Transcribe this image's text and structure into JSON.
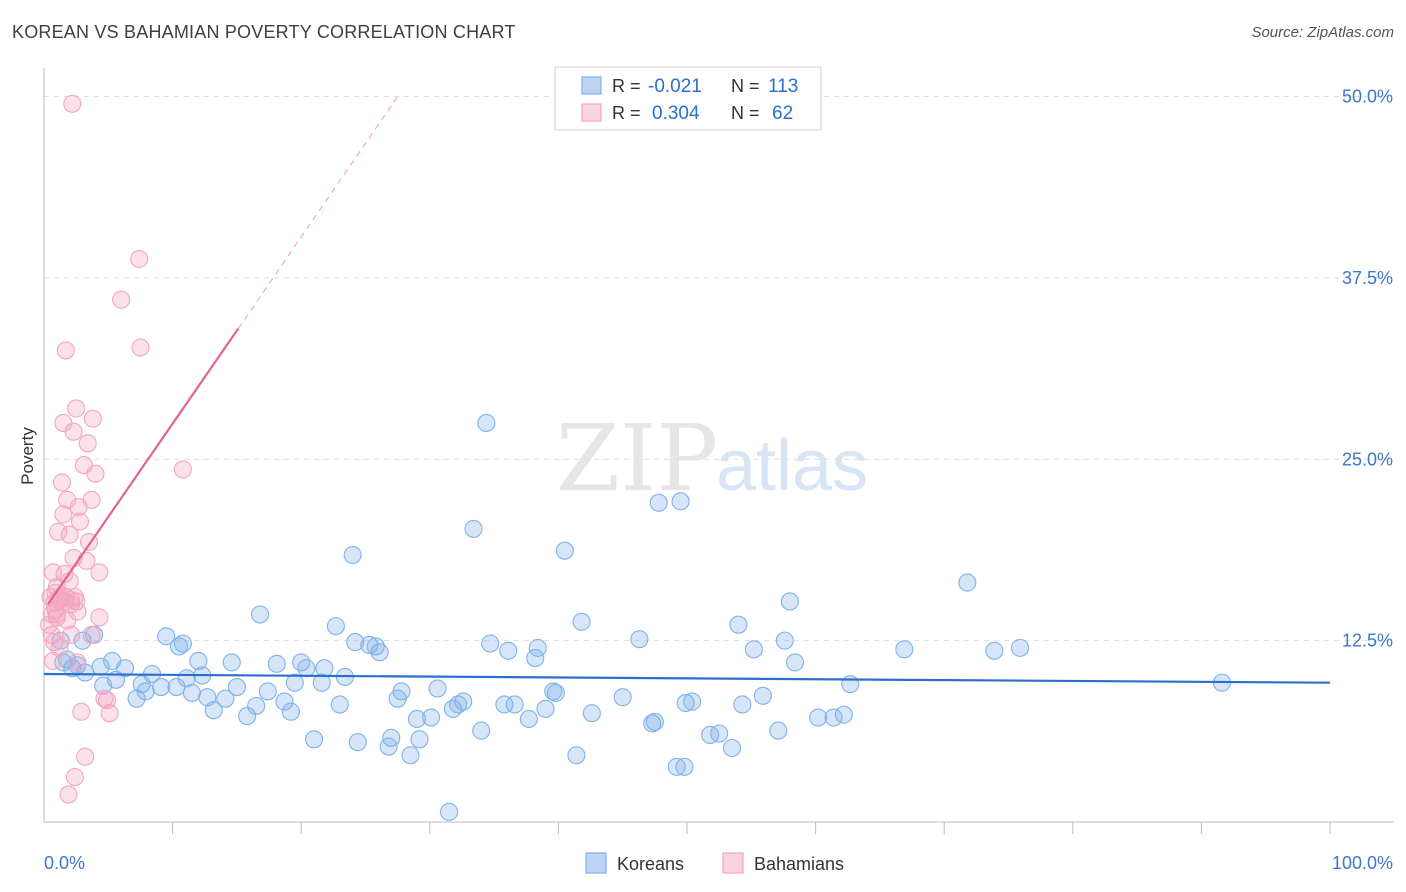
{
  "header": {
    "title": "KOREAN VS BAHAMIAN POVERTY CORRELATION CHART",
    "source": "Source: ZipAtlas.com"
  },
  "watermark": {
    "zip": "ZIP",
    "atlas": "atlas"
  },
  "colors": {
    "koreans": "#7fb2ea",
    "koreans_line": "#2a6fcf",
    "bahamians": "#f4a6be",
    "bahamians_line": "#e4628f",
    "axis_text": "#3c78c8",
    "grid": "#dddddd"
  },
  "legend_stats": {
    "r_label": "R =",
    "n_label": "N =",
    "koreans": {
      "r": "-0.021",
      "n": "113"
    },
    "bahamians": {
      "r": "0.304",
      "n": "62"
    }
  },
  "chart_data": {
    "type": "scatter",
    "title": "KOREAN VS BAHAMIAN POVERTY CORRELATION CHART",
    "xlabel": "",
    "ylabel": "Poverty",
    "xlim": [
      0,
      100
    ],
    "ylim": [
      0,
      51
    ],
    "x_tick_labels": [
      "0.0%",
      "100.0%"
    ],
    "y_ticks": [
      12.5,
      25.0,
      37.5,
      50.0
    ],
    "y_tick_labels": [
      "12.5%",
      "25.0%",
      "37.5%",
      "50.0%"
    ],
    "legend": [
      "Koreans",
      "Bahamians"
    ],
    "series": [
      {
        "name": "Koreans",
        "trend": {
          "x": [
            0,
            100
          ],
          "y": [
            10.2,
            9.6
          ]
        },
        "points": [
          [
            1.3,
            12.5
          ],
          [
            1.8,
            11.2
          ],
          [
            2.2,
            10.6
          ],
          [
            2.6,
            10.8
          ],
          [
            3.2,
            10.3
          ],
          [
            3.9,
            12.9
          ],
          [
            4.4,
            10.7
          ],
          [
            4.6,
            9.4
          ],
          [
            5.3,
            11.1
          ],
          [
            5.6,
            9.8
          ],
          [
            6.3,
            10.6
          ],
          [
            7.2,
            8.5
          ],
          [
            7.6,
            9.5
          ],
          [
            7.9,
            9.0
          ],
          [
            8.4,
            10.2
          ],
          [
            9.1,
            9.3
          ],
          [
            9.5,
            12.8
          ],
          [
            10.3,
            9.3
          ],
          [
            10.5,
            12.1
          ],
          [
            10.8,
            12.3
          ],
          [
            11.1,
            9.9
          ],
          [
            11.5,
            8.9
          ],
          [
            12.0,
            11.1
          ],
          [
            12.3,
            10.1
          ],
          [
            12.7,
            8.6
          ],
          [
            13.2,
            7.7
          ],
          [
            14.1,
            8.5
          ],
          [
            14.6,
            11.0
          ],
          [
            15.0,
            9.3
          ],
          [
            15.8,
            7.3
          ],
          [
            16.5,
            8.0
          ],
          [
            16.8,
            14.3
          ],
          [
            17.4,
            9.0
          ],
          [
            18.1,
            10.9
          ],
          [
            18.7,
            8.3
          ],
          [
            19.2,
            7.6
          ],
          [
            19.5,
            9.6
          ],
          [
            20.0,
            11.0
          ],
          [
            20.4,
            10.6
          ],
          [
            21.0,
            5.7
          ],
          [
            21.6,
            9.6
          ],
          [
            21.8,
            10.6
          ],
          [
            22.7,
            13.5
          ],
          [
            23.0,
            8.1
          ],
          [
            23.4,
            10.0
          ],
          [
            24.0,
            18.4
          ],
          [
            24.2,
            12.4
          ],
          [
            24.4,
            5.5
          ],
          [
            25.3,
            12.2
          ],
          [
            25.8,
            12.1
          ],
          [
            26.1,
            11.7
          ],
          [
            26.8,
            5.2
          ],
          [
            27.0,
            5.8
          ],
          [
            27.5,
            8.5
          ],
          [
            27.8,
            9.0
          ],
          [
            28.5,
            4.6
          ],
          [
            29.0,
            7.1
          ],
          [
            29.2,
            5.7
          ],
          [
            30.1,
            7.2
          ],
          [
            30.6,
            9.2
          ],
          [
            31.5,
            0.7
          ],
          [
            31.8,
            7.8
          ],
          [
            32.2,
            8.1
          ],
          [
            32.6,
            8.3
          ],
          [
            33.4,
            20.2
          ],
          [
            34.0,
            6.3
          ],
          [
            34.4,
            27.5
          ],
          [
            34.7,
            12.3
          ],
          [
            35.8,
            8.1
          ],
          [
            36.1,
            11.8
          ],
          [
            36.6,
            8.1
          ],
          [
            37.7,
            7.1
          ],
          [
            38.2,
            11.3
          ],
          [
            38.4,
            12.0
          ],
          [
            39.0,
            7.8
          ],
          [
            39.6,
            9.0
          ],
          [
            39.8,
            8.9
          ],
          [
            40.5,
            18.7
          ],
          [
            41.4,
            4.6
          ],
          [
            41.8,
            13.8
          ],
          [
            42.6,
            7.5
          ],
          [
            45.0,
            8.6
          ],
          [
            46.3,
            12.6
          ],
          [
            47.3,
            6.8
          ],
          [
            47.5,
            6.9
          ],
          [
            47.8,
            22.0
          ],
          [
            49.2,
            3.8
          ],
          [
            49.5,
            22.1
          ],
          [
            49.8,
            3.8
          ],
          [
            49.9,
            8.2
          ],
          [
            50.4,
            8.3
          ],
          [
            51.8,
            6.0
          ],
          [
            52.5,
            6.1
          ],
          [
            53.5,
            5.1
          ],
          [
            54.0,
            13.6
          ],
          [
            54.3,
            8.1
          ],
          [
            55.2,
            11.9
          ],
          [
            55.9,
            8.7
          ],
          [
            57.1,
            6.3
          ],
          [
            57.6,
            12.5
          ],
          [
            58.0,
            15.2
          ],
          [
            58.4,
            11.0
          ],
          [
            60.2,
            7.2
          ],
          [
            61.4,
            7.2
          ],
          [
            62.2,
            7.4
          ],
          [
            62.7,
            9.5
          ],
          [
            66.9,
            11.9
          ],
          [
            71.8,
            16.5
          ],
          [
            73.9,
            11.8
          ],
          [
            75.9,
            12.0
          ],
          [
            91.6,
            9.6
          ],
          [
            1.5,
            11.0
          ],
          [
            3.0,
            12.5
          ]
        ]
      },
      {
        "name": "Bahamians",
        "trend": {
          "x": [
            0.3,
            15.1
          ],
          "y": [
            15.0,
            34.0
          ],
          "dashed_x": [
            15.1,
            27.5
          ],
          "dashed_y": [
            34.0,
            50.0
          ]
        },
        "points": [
          [
            0.4,
            13.6
          ],
          [
            0.5,
            15.5
          ],
          [
            0.6,
            14.3
          ],
          [
            0.6,
            12.9
          ],
          [
            0.7,
            11.1
          ],
          [
            0.7,
            17.2
          ],
          [
            0.8,
            15.1
          ],
          [
            0.8,
            12.4
          ],
          [
            0.9,
            14.6
          ],
          [
            1.0,
            16.2
          ],
          [
            1.0,
            14.3
          ],
          [
            1.1,
            20.0
          ],
          [
            1.2,
            15.3
          ],
          [
            1.2,
            12.0
          ],
          [
            1.3,
            15.5
          ],
          [
            1.4,
            23.4
          ],
          [
            1.5,
            21.2
          ],
          [
            1.5,
            27.5
          ],
          [
            1.6,
            17.1
          ],
          [
            1.6,
            15.2
          ],
          [
            1.7,
            32.5
          ],
          [
            1.7,
            15.5
          ],
          [
            1.8,
            22.2
          ],
          [
            1.8,
            13.9
          ],
          [
            1.9,
            1.9
          ],
          [
            2.0,
            19.8
          ],
          [
            2.0,
            16.6
          ],
          [
            2.1,
            12.9
          ],
          [
            2.1,
            15.3
          ],
          [
            2.1,
            15.0
          ],
          [
            2.2,
            49.5
          ],
          [
            2.3,
            26.9
          ],
          [
            2.3,
            18.2
          ],
          [
            2.4,
            3.1
          ],
          [
            2.5,
            28.5
          ],
          [
            2.5,
            15.2
          ],
          [
            2.6,
            11.0
          ],
          [
            2.6,
            14.5
          ],
          [
            2.7,
            21.7
          ],
          [
            2.8,
            20.7
          ],
          [
            2.9,
            7.6
          ],
          [
            3.1,
            24.6
          ],
          [
            3.2,
            4.5
          ],
          [
            3.3,
            18.0
          ],
          [
            3.4,
            26.1
          ],
          [
            3.5,
            19.3
          ],
          [
            3.7,
            12.9
          ],
          [
            3.7,
            22.2
          ],
          [
            3.8,
            27.8
          ],
          [
            4.0,
            24.0
          ],
          [
            4.3,
            17.2
          ],
          [
            4.3,
            14.1
          ],
          [
            4.7,
            8.5
          ],
          [
            4.9,
            8.4
          ],
          [
            5.1,
            7.5
          ],
          [
            6.0,
            36.0
          ],
          [
            7.4,
            38.8
          ],
          [
            7.5,
            32.7
          ],
          [
            10.8,
            24.3
          ],
          [
            1.0,
            14.1
          ],
          [
            0.9,
            15.8
          ],
          [
            2.4,
            15.5
          ]
        ]
      }
    ]
  },
  "bottom_legend": {
    "koreans": "Koreans",
    "bahamians": "Bahamians"
  }
}
